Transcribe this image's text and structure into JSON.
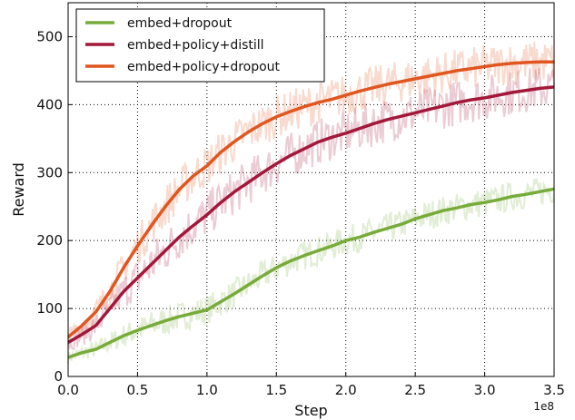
{
  "chart_data": {
    "type": "line",
    "xlabel": "Step",
    "ylabel": "Reward",
    "x_exponent_label": "1e8",
    "xlim": [
      0.0,
      3.5
    ],
    "ylim": [
      0,
      550
    ],
    "x_ticks": [
      "0.0",
      "0.5",
      "1.0",
      "1.5",
      "2.0",
      "2.5",
      "3.0",
      "3.5"
    ],
    "y_ticks": [
      "0",
      "100",
      "200",
      "300",
      "400",
      "500"
    ],
    "grid": true,
    "legend_position": "top-left",
    "x": [
      0.0,
      0.1,
      0.2,
      0.3,
      0.4,
      0.5,
      0.6,
      0.7,
      0.8,
      0.9,
      1.0,
      1.1,
      1.2,
      1.3,
      1.4,
      1.5,
      1.6,
      1.7,
      1.8,
      1.9,
      2.0,
      2.1,
      2.2,
      2.3,
      2.4,
      2.5,
      2.6,
      2.7,
      2.8,
      2.9,
      3.0,
      3.1,
      3.2,
      3.3,
      3.4,
      3.5
    ],
    "series": [
      {
        "name": "embed+dropout",
        "color": "#77ab3a",
        "values": [
          28,
          35,
          40,
          50,
          60,
          68,
          75,
          82,
          88,
          93,
          98,
          110,
          122,
          135,
          148,
          160,
          170,
          178,
          185,
          192,
          200,
          205,
          212,
          218,
          224,
          232,
          238,
          244,
          248,
          253,
          256,
          260,
          265,
          268,
          272,
          276
        ]
      },
      {
        "name": "embed+policy+distill",
        "color": "#a3183a",
        "values": [
          50,
          62,
          75,
          100,
          125,
          145,
          165,
          185,
          205,
          222,
          238,
          256,
          272,
          286,
          300,
          313,
          325,
          335,
          345,
          352,
          358,
          365,
          372,
          378,
          383,
          388,
          393,
          398,
          403,
          407,
          410,
          414,
          418,
          421,
          424,
          426
        ]
      },
      {
        "name": "embed+policy+dropout",
        "color": "#e0561f",
        "values": [
          58,
          75,
          95,
          125,
          160,
          192,
          222,
          250,
          275,
          295,
          310,
          330,
          346,
          360,
          372,
          382,
          390,
          397,
          403,
          408,
          414,
          420,
          425,
          430,
          434,
          438,
          442,
          446,
          450,
          453,
          456,
          459,
          461,
          462,
          463,
          463
        ]
      }
    ]
  }
}
